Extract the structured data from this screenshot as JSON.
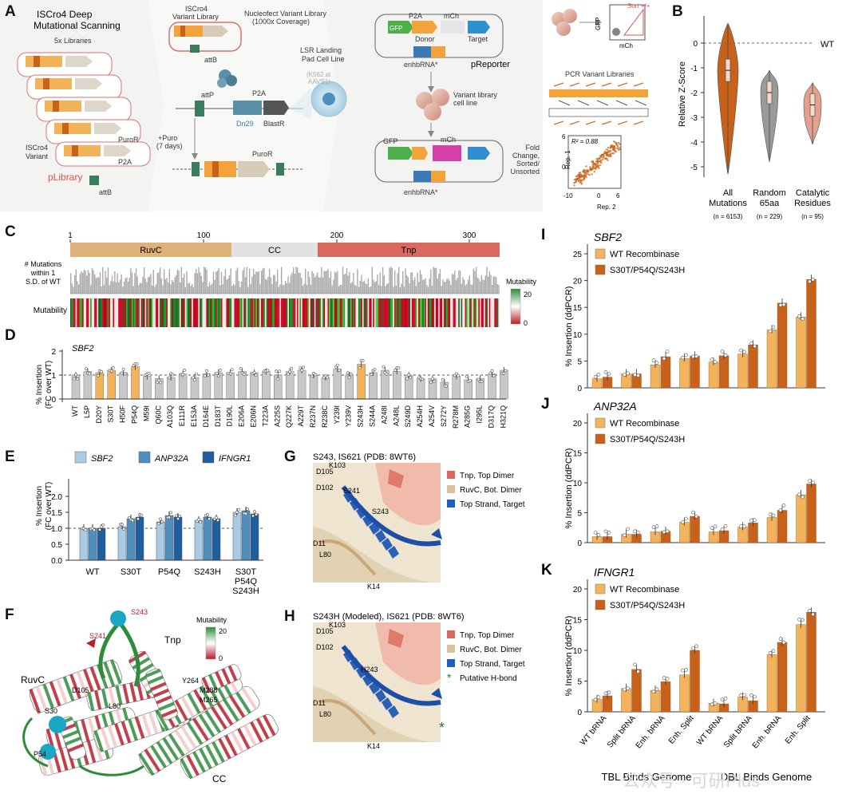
{
  "colors": {
    "orange_dark": "#c8621a",
    "orange_light": "#f2b35a",
    "grey": "#c8c8c8",
    "ruvc": "#dfb07a",
    "cc": "#e2e2e2",
    "tnp": "#d9685f",
    "green": "#2e8b3a",
    "red": "#b81d2a",
    "sbf2": "#a9cbe3",
    "anp32a": "#4f8fc0",
    "ifngr1": "#1f5f9e",
    "salmon": "#e4a08f"
  },
  "panelA": {
    "letter": "A",
    "title": "ISCro4 Deep\nMutational Scanning",
    "subtitle": "5x Libraries",
    "variant_label": "ISCro4\nVariant",
    "plibrary": "pLibrary",
    "attB": "attB",
    "p2a": "P2A",
    "puro": "PuroR",
    "variant_lib": "ISCro4\nVariant Library",
    "nucleofect": "Nucleofect Variant Library\n(1000x Coverage)",
    "attB2": "attB",
    "attP": "attP",
    "dn29": "Dn29",
    "p2a2": "P2A",
    "blast": "BlastR",
    "lsr": "LSR Landing\nPad Cell Line",
    "k562": "(K562 at\nAAVS1)",
    "puro_days": "+Puro\n(7 days)",
    "puro2": "PuroR",
    "p2a3": "P2A",
    "gfp": "GFP",
    "donor": "Donor",
    "mch": "mCh",
    "target": "Target",
    "enhbrna": "enhbRNA*",
    "preporter": "pReporter",
    "variant_cells": "Variant library\ncell line",
    "gfp2": "GFP",
    "mch2": "mCh",
    "enhbrna2": "enhbRNA*",
    "gfp_axis": "GFP",
    "mch_axis": "mCh",
    "sort": "Sort +/+",
    "pcr": "PCR Variant Libraries",
    "fold": "Fold\nChange,\nSorted/\nUnsorted",
    "r2": "R² = 0.88",
    "rep1": "Rep. 1",
    "rep2": "Rep. 2",
    "ticks_x": [
      "-10",
      "0",
      "6"
    ],
    "ticks_y": [
      "6",
      "0"
    ]
  },
  "chart_data": [
    {
      "id": "B",
      "type": "violin",
      "ylabel": "Relative Z-Score",
      "ylim": [
        -5.5,
        0.5
      ],
      "yticks": [
        "0",
        "-1",
        "-2",
        "-3",
        "-4",
        "-5"
      ],
      "wt_label": "WT",
      "categories": [
        "All\nMutations",
        "Random\n65aa",
        "Catalytic\nResidues"
      ],
      "counts": [
        "(n = 6153)",
        "(n = 229)",
        "(n = 95)"
      ],
      "medians": [
        -1.1,
        -2.0,
        -2.5
      ],
      "min": [
        -5.3,
        -4.8,
        -4.1
      ],
      "max": [
        0.8,
        -1.1,
        -1.6
      ]
    },
    {
      "id": "C",
      "type": "bar",
      "domain_ticks": [
        "1",
        "100",
        "200",
        "300"
      ],
      "domains": [
        "RuvC",
        "CC",
        "Tnp"
      ],
      "ylabel": "# Mutations\nwithin 1\nS.D. of WT",
      "heat_label": "Mutability",
      "legend_title": "Mutability",
      "legend_max": "20",
      "legend_min": "0"
    },
    {
      "id": "D",
      "type": "bar",
      "gene": "SBF2",
      "ylabel": "% Insertion\n(FC over WT)",
      "yticks": [
        "0",
        "1",
        "2"
      ],
      "ylim": [
        0,
        2
      ],
      "categories": [
        "WT",
        "L5P",
        "D20Y",
        "S30T",
        "H50F",
        "P54Q",
        "M59I",
        "Q60C",
        "A103Q",
        "E111R",
        "E153A",
        "D164E",
        "D183T",
        "D190L",
        "E206A",
        "E206N",
        "T223A",
        "A225S",
        "Q227K",
        "A229T",
        "R237N",
        "R238C",
        "Y239I",
        "Y239V",
        "S243H",
        "S244A",
        "A248I",
        "A248L",
        "S249D",
        "A254H",
        "A254V",
        "S272Y",
        "R278M",
        "A285G",
        "I295L",
        "D317Q",
        "H321Q"
      ],
      "values": [
        1.0,
        1.15,
        1.1,
        1.2,
        1.1,
        1.35,
        0.95,
        0.85,
        0.9,
        1.05,
        0.9,
        1.05,
        1.1,
        1.1,
        1.15,
        1.1,
        1.15,
        1.0,
        1.15,
        1.2,
        1.0,
        0.9,
        1.25,
        1.0,
        1.45,
        1.1,
        1.2,
        1.15,
        1.0,
        0.85,
        0.85,
        0.7,
        0.95,
        0.8,
        0.85,
        1.05,
        1.2
      ],
      "highlight": [
        "D20Y",
        "S30T",
        "P54Q",
        "S243H"
      ]
    },
    {
      "id": "E",
      "type": "bar",
      "ylabel": "% Insertion\n(FC over WT)",
      "yticks": [
        "0.0",
        "0.5",
        "1.0",
        "1.5",
        "2.0"
      ],
      "ylim": [
        0,
        2
      ],
      "categories": [
        "WT",
        "S30T",
        "P54Q",
        "S243H",
        "S30T\nP54Q\nS243H"
      ],
      "series": [
        {
          "name": "SBF2",
          "values": [
            1.0,
            1.05,
            1.2,
            1.25,
            1.5
          ]
        },
        {
          "name": "ANP32A",
          "values": [
            1.0,
            1.3,
            1.4,
            1.35,
            1.55
          ]
        },
        {
          "name": "IFNGR1",
          "values": [
            1.0,
            1.35,
            1.35,
            1.3,
            1.45
          ]
        }
      ]
    },
    {
      "id": "I",
      "type": "bar",
      "gene": "SBF2",
      "ylabel": "% Insertion (ddPCR)",
      "yticks": [
        "0",
        "5",
        "10",
        "15",
        "20",
        "25"
      ],
      "ylim": [
        0,
        25
      ],
      "series": [
        {
          "name": "WT Recombinase",
          "values": [
            1.7,
            2.6,
            4.3,
            5.5,
            4.8,
            6.3,
            10.8,
            13.2
          ]
        },
        {
          "name": "S30T/P54Q/S243H",
          "values": [
            2.0,
            2.6,
            5.8,
            5.9,
            6.0,
            8.0,
            15.8,
            20.2
          ]
        }
      ]
    },
    {
      "id": "J",
      "type": "bar",
      "gene": "ANP32A",
      "ylabel": "% Insertion (ddPCR)",
      "yticks": [
        "0",
        "5",
        "10",
        "15",
        "20"
      ],
      "ylim": [
        0,
        20
      ],
      "series": [
        {
          "name": "WT Recombinase",
          "values": [
            1.0,
            1.4,
            1.8,
            3.4,
            1.8,
            2.6,
            4.2,
            8.0
          ]
        },
        {
          "name": "S30T/P54Q/S243H",
          "values": [
            1.0,
            1.4,
            1.9,
            4.4,
            2.0,
            3.3,
            5.4,
            9.8
          ]
        }
      ]
    },
    {
      "id": "K",
      "type": "bar",
      "gene": "IFNGR1",
      "ylabel": "% Insertion (ddPCR)",
      "yticks": [
        "0",
        "5",
        "10",
        "15",
        "20"
      ],
      "ylim": [
        0,
        20
      ],
      "categories": [
        "WT bRNA",
        "Split bRNA",
        "Enh. bRNA",
        "Enh. Split",
        "WT bRNA",
        "Split bRNA",
        "Enh. bRNA",
        "Enh. Split"
      ],
      "groups": [
        "TBL Binds Genome",
        "DBL Binds Genome"
      ],
      "series": [
        {
          "name": "WT Recombinase",
          "values": [
            2.0,
            3.8,
            3.5,
            6.0,
            1.4,
            2.4,
            9.3,
            14.2
          ]
        },
        {
          "name": "S30T/P54Q/S243H",
          "values": [
            2.6,
            6.9,
            4.9,
            10.0,
            1.3,
            1.8,
            11.3,
            16.2
          ]
        }
      ]
    }
  ],
  "panelG": {
    "title": "S243, IS621 (PDB: 8WT6)",
    "legend": [
      "Tnp, Top Dimer",
      "RuvC, Bot. Dimer",
      "Top Strand, Target"
    ],
    "residues": [
      "D105",
      "K103",
      "D102",
      "S241",
      "S243",
      "D11",
      "L80",
      "K14"
    ]
  },
  "panelH": {
    "title": "S243H (Modeled), IS621 (PDB: 8WT6)",
    "legend": [
      "Tnp, Top Dimer",
      "RuvC, Bot. Dimer",
      "Top Strand, Target",
      "Putative H-bond"
    ],
    "residues": [
      "D105",
      "K103",
      "D102",
      "H243",
      "D11",
      "L80",
      "K14"
    ],
    "star": "*"
  },
  "panelF": {
    "labels": [
      "S243",
      "S241",
      "Tnp",
      "RuvC",
      "D105",
      "L80",
      "S30",
      "P54",
      "Y264",
      "M288",
      "M265",
      "CC"
    ],
    "legend_title": "Mutability",
    "legend_max": "20",
    "legend_min": "0"
  },
  "letters": [
    "A",
    "B",
    "C",
    "D",
    "E",
    "F",
    "G",
    "H",
    "I",
    "J",
    "K"
  ],
  "watermark": "公众号 · 可研Plus"
}
